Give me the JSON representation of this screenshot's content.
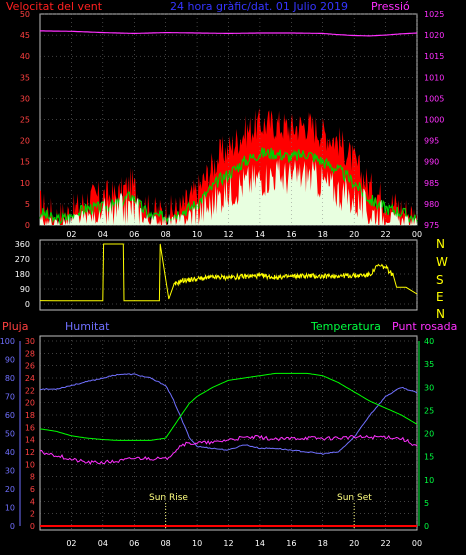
{
  "header": {
    "wind_label": "Velocitat del vent",
    "title": "24 hora gràfic/dat. 01 Julio 2019",
    "pressure_label": "Pressió"
  },
  "labels": {
    "pluja": "Pluja",
    "humitat": "Humitat",
    "temperatura": "Temperatura",
    "punt_rosada": "Punt rosada",
    "sun_rise": "Sun Rise",
    "sun_set": "Sun Set",
    "compass": [
      "N",
      "W",
      "S",
      "E",
      "N"
    ]
  },
  "colors": {
    "wind_label": "#ff2020",
    "title": "#3535ff",
    "pressure": "#ff30ff",
    "gust": "#ff0000",
    "wind_avg": "#00d000",
    "wind_min": "#e8ffe0",
    "direction": "#ffff00",
    "humidity": "#7070ff",
    "temperature": "#00ff00",
    "dewpoint": "#ff30ff",
    "rain": "#ff0000",
    "axis_rain": "#ff4040",
    "axis_hum": "#7070ff",
    "axis_temp": "#00ff40",
    "panel_border": "#c0c0c0",
    "grid": "#808080",
    "tick_white": "#ffffff",
    "sun_mark": "#ffff80",
    "compass": "#ffff00"
  },
  "chart_data": [
    {
      "type": "area",
      "name": "wind",
      "xlabel": "",
      "ylabel": "Velocitat del vent",
      "xlim": [
        0,
        24
      ],
      "x_ticks": [
        "02",
        "04",
        "06",
        "08",
        "10",
        "12",
        "14",
        "16",
        "18",
        "20",
        "22",
        "00"
      ],
      "ylim": [
        0,
        50
      ],
      "y_ticks": [
        0,
        5,
        10,
        15,
        20,
        25,
        30,
        35,
        40,
        45,
        50
      ],
      "y2lim": [
        975,
        1025
      ],
      "y2_ticks": [
        975,
        980,
        985,
        990,
        995,
        1000,
        1005,
        1010,
        1015,
        1020,
        1025
      ],
      "series": [
        {
          "name": "gust",
          "x": [
            0,
            1,
            2,
            3,
            4,
            5,
            5.8,
            6.5,
            7,
            8,
            9,
            9.5,
            10,
            11,
            11.5,
            12,
            13,
            14,
            15,
            16,
            17,
            18,
            19,
            20,
            21,
            22,
            23,
            24
          ],
          "values": [
            5,
            2,
            3,
            6,
            7,
            7,
            10,
            6,
            3,
            3,
            4,
            6,
            8,
            14,
            17,
            18,
            22,
            24,
            24,
            23,
            24,
            22,
            20,
            15,
            9,
            6,
            4,
            2
          ]
        },
        {
          "name": "average",
          "x": [
            0,
            1,
            2,
            3,
            4,
            5,
            5.8,
            6.5,
            7,
            8,
            9,
            9.5,
            10,
            11,
            11.5,
            12,
            13,
            14,
            15,
            16,
            17,
            18,
            19,
            20,
            21,
            22,
            23,
            24
          ],
          "values": [
            3,
            1,
            2,
            4,
            4,
            5,
            7,
            4,
            2,
            2,
            3,
            4,
            5,
            9,
            11,
            12,
            15,
            17,
            17,
            16,
            17,
            15,
            13,
            10,
            6,
            4,
            3,
            1
          ]
        },
        {
          "name": "minimum",
          "x": [
            0,
            1,
            2,
            3,
            4,
            5,
            5.8,
            6.5,
            7,
            8,
            9,
            9.5,
            10,
            11,
            11.5,
            12,
            13,
            14,
            15,
            16,
            17,
            18,
            19,
            20,
            21,
            22,
            23,
            24
          ],
          "values": [
            1,
            0,
            1,
            2,
            2,
            3,
            4,
            2,
            1,
            1,
            1,
            2,
            3,
            5,
            7,
            8,
            10,
            11,
            12,
            11,
            12,
            10,
            8,
            6,
            3,
            2,
            1,
            0
          ]
        },
        {
          "name": "pressure",
          "axis": "y2",
          "x": [
            0,
            2,
            4,
            6,
            8,
            10,
            12,
            14,
            16,
            18,
            19,
            20,
            21,
            22,
            23,
            24
          ],
          "values": [
            1021,
            1020.9,
            1020.6,
            1020.4,
            1020.6,
            1020.5,
            1020.4,
            1020.5,
            1020.5,
            1020.4,
            1020.1,
            1019.9,
            1019.8,
            1020,
            1020.3,
            1020.5
          ]
        }
      ]
    },
    {
      "type": "line",
      "name": "wind_direction",
      "xlim": [
        0,
        24
      ],
      "ylim": [
        0,
        360
      ],
      "y_ticks": [
        0,
        90,
        180,
        270,
        360
      ],
      "series": [
        {
          "name": "direction",
          "x": [
            0,
            1,
            2,
            3,
            4,
            4.05,
            5.3,
            5.35,
            6,
            7,
            7.6,
            7.65,
            8.2,
            8.5,
            9,
            10,
            11,
            12,
            13,
            14,
            15,
            16,
            17,
            18,
            19,
            20,
            21,
            21.5,
            22,
            22.5,
            22.7,
            23.3,
            24
          ],
          "values": [
            20,
            20,
            20,
            20,
            20,
            360,
            360,
            20,
            20,
            20,
            20,
            360,
            30,
            110,
            140,
            150,
            160,
            160,
            165,
            170,
            160,
            165,
            170,
            165,
            170,
            170,
            175,
            230,
            220,
            170,
            100,
            100,
            60
          ]
        }
      ]
    },
    {
      "type": "line",
      "name": "temp_hum_rain",
      "xlim": [
        0,
        24
      ],
      "x_ticks": [
        "02",
        "04",
        "06",
        "08",
        "10",
        "12",
        "14",
        "16",
        "18",
        "20",
        "22",
        "00"
      ],
      "ylim_rain": [
        0,
        30
      ],
      "y_ticks_rain": [
        0,
        2,
        4,
        6,
        8,
        10,
        12,
        14,
        16,
        18,
        20,
        22,
        24,
        26,
        28,
        30
      ],
      "ylim_humidity": [
        0,
        100
      ],
      "y_ticks_humidity": [
        0,
        10,
        20,
        30,
        40,
        50,
        60,
        70,
        80,
        90,
        100
      ],
      "ylim_temperature": [
        0,
        40
      ],
      "y_ticks_temperature": [
        0,
        5,
        10,
        15,
        20,
        25,
        30,
        35,
        40
      ],
      "sun_rise": 8.0,
      "sun_set": 20.0,
      "series": [
        {
          "name": "Humitat",
          "axis": "humidity",
          "x": [
            0,
            1,
            2,
            3,
            4,
            5,
            6,
            7,
            8,
            8.5,
            9,
            9.5,
            10,
            11,
            12,
            13,
            14,
            15,
            16,
            17,
            18,
            19,
            20,
            21,
            22,
            23,
            24
          ],
          "values": [
            74,
            74,
            76,
            78,
            80,
            82,
            82,
            80,
            76,
            68,
            58,
            48,
            43,
            42,
            41,
            44,
            42,
            42,
            41,
            40,
            39,
            40,
            48,
            60,
            70,
            75,
            72
          ]
        },
        {
          "name": "Temperatura",
          "axis": "temperature",
          "x": [
            0,
            1,
            2,
            3,
            4,
            5,
            6,
            7,
            8,
            8.5,
            9,
            9.5,
            10,
            11,
            12,
            13,
            14,
            15,
            16,
            17,
            18,
            19,
            20,
            21,
            22,
            23,
            24
          ],
          "values": [
            21,
            20.5,
            19.5,
            19,
            18.7,
            18.5,
            18.5,
            18.5,
            19,
            21.5,
            24,
            26.5,
            28,
            30,
            31.5,
            32,
            32.5,
            33,
            33,
            33,
            32.5,
            31,
            29,
            27,
            25.5,
            24,
            22
          ]
        },
        {
          "name": "Punt rosada",
          "axis": "rain",
          "x": [
            0,
            1,
            2,
            3,
            4,
            5,
            6,
            7,
            8,
            8.5,
            9,
            10,
            11,
            12,
            13,
            14,
            15,
            16,
            17,
            18,
            19,
            20,
            21,
            22,
            23,
            24
          ],
          "values": [
            12,
            11.5,
            10.8,
            10.3,
            10.3,
            10.5,
            11,
            11,
            10.8,
            12,
            13.2,
            13.5,
            13.5,
            14,
            14.3,
            14.4,
            14,
            14.2,
            14.3,
            14.2,
            14.3,
            14.4,
            14.4,
            14.5,
            14.2,
            13
          ]
        },
        {
          "name": "Pluja",
          "axis": "rain",
          "x": [
            0,
            24
          ],
          "values": [
            0,
            0
          ]
        }
      ]
    }
  ]
}
